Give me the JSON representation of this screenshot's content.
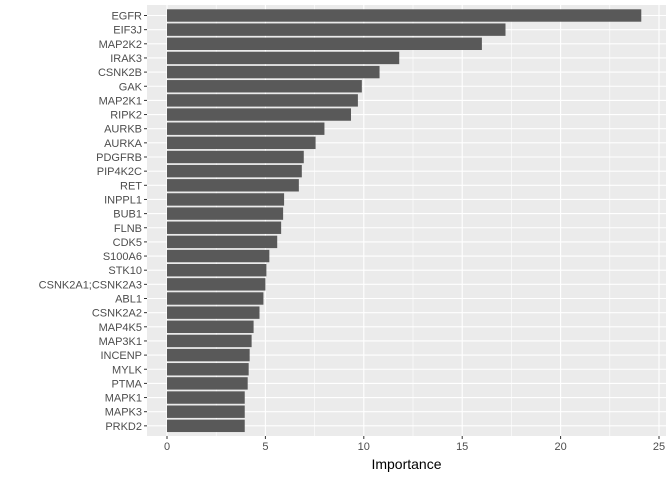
{
  "chart_data": {
    "type": "bar",
    "orientation": "horizontal",
    "xlabel": "Importance",
    "ylabel": "",
    "xlim": [
      0,
      25
    ],
    "xticks": [
      0,
      5,
      10,
      15,
      20,
      25
    ],
    "grid": true,
    "bar_color": "#595959",
    "panel_color": "#ebebeb",
    "categories": [
      "EGFR",
      "EIF3J",
      "MAP2K2",
      "IRAK3",
      "CSNK2B",
      "GAK",
      "MAP2K1",
      "RIPK2",
      "AURKB",
      "AURKA",
      "PDGFRB",
      "PIP4K2C",
      "RET",
      "INPPL1",
      "BUB1",
      "FLNB",
      "CDK5",
      "S100A6",
      "STK10",
      "CSNK2A1;CSNK2A3",
      "ABL1",
      "CSNK2A2",
      "MAP4K5",
      "MAP3K1",
      "INCENP",
      "MYLK",
      "PTMA",
      "MAPK1",
      "MAPK3",
      "PRKD2"
    ],
    "values": [
      24.1,
      17.2,
      16.0,
      11.8,
      10.8,
      9.9,
      9.7,
      9.35,
      8.0,
      7.55,
      6.95,
      6.85,
      6.7,
      5.95,
      5.9,
      5.8,
      5.6,
      5.2,
      5.05,
      5.0,
      4.9,
      4.7,
      4.4,
      4.3,
      4.2,
      4.15,
      4.1,
      3.95,
      3.95,
      3.95
    ]
  }
}
